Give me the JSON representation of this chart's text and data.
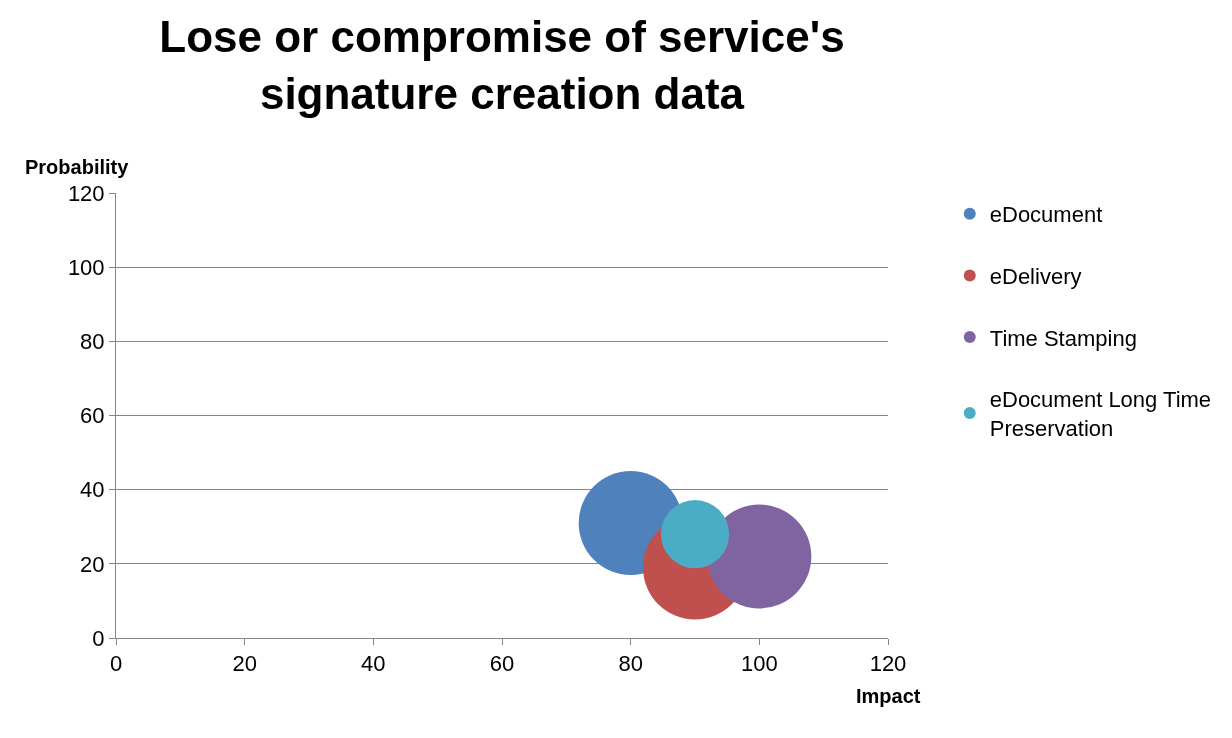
{
  "chart_data": {
    "type": "bubble",
    "title": "Lose or compromise of service's signature creation data",
    "xlabel": "Impact",
    "ylabel": "Probability",
    "xlim": [
      0,
      120
    ],
    "xticks": [
      0,
      20,
      40,
      60,
      80,
      100,
      120
    ],
    "ylim": [
      0,
      120
    ],
    "yticks": [
      0,
      20,
      40,
      60,
      80,
      100,
      120
    ],
    "grid": "y",
    "legend": "right",
    "series": [
      {
        "name": "eDocument",
        "color": "#4f81bd",
        "x": [
          80
        ],
        "values": [
          31
        ],
        "sizes": [
          1
        ]
      },
      {
        "name": "eDelivery",
        "color": "#c0504d",
        "x": [
          90
        ],
        "values": [
          19
        ],
        "sizes": [
          1
        ]
      },
      {
        "name": "Time Stamping",
        "color": "#8064a2",
        "x": [
          100
        ],
        "values": [
          22
        ],
        "sizes": [
          1
        ]
      },
      {
        "name": "eDocument Long Time Preservation",
        "color": "#4bacc6",
        "x": [
          90
        ],
        "values": [
          28
        ],
        "sizes": [
          0.43
        ]
      }
    ]
  }
}
